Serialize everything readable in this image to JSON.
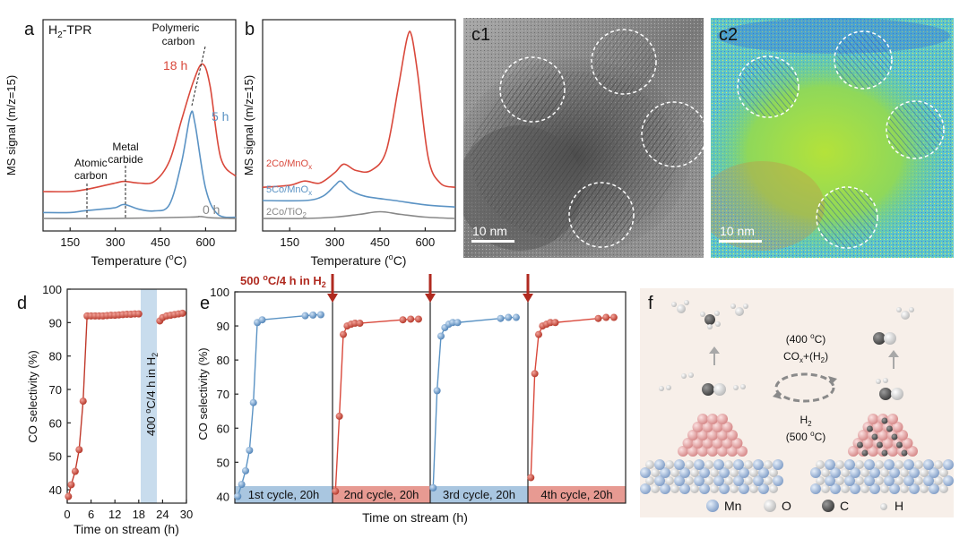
{
  "panels": {
    "a": {
      "letter": "a",
      "title_main": "H",
      "title_sub": "2",
      "title_rest": "-TPR",
      "ylabel": "MS signal (m/z=15)",
      "xlabel_pre": "Temperature (",
      "xlabel_sup": "o",
      "xlabel_post": "C)",
      "xticks": [
        "150",
        "300",
        "450",
        "600"
      ],
      "labels": {
        "polymeric1": "Polymeric",
        "polymeric2": "carbon",
        "metal1": "Metal",
        "metal2": "carbide",
        "atomic1": "Atomic",
        "atomic2": "carbon"
      },
      "series": [
        {
          "name": "18 h",
          "color": "#d9483b"
        },
        {
          "name": "5 h",
          "color": "#5b93c4"
        },
        {
          "name": "0 h",
          "color": "#888888"
        }
      ]
    },
    "b": {
      "letter": "b",
      "ylabel": "MS signal (m/z=15)",
      "xlabel_pre": "Temperature (",
      "xlabel_sup": "o",
      "xlabel_post": "C)",
      "xticks": [
        "150",
        "300",
        "450",
        "600"
      ],
      "series": [
        {
          "name_main": "2Co/MnO",
          "name_sub": "x",
          "color": "#d9483b"
        },
        {
          "name_main": "5Co/MnO",
          "name_sub": "x",
          "color": "#5b93c4"
        },
        {
          "name_main": "2Co/TiO",
          "name_sub": "2",
          "color": "#888888"
        }
      ]
    },
    "c1": {
      "letter": "c1",
      "scale": "10 nm"
    },
    "c2": {
      "letter": "c2",
      "scale": "10 nm"
    },
    "d": {
      "letter": "d",
      "ylabel": "CO selectivity (%)",
      "xlabel": "Time on stream (h)",
      "xticks": [
        "0",
        "6",
        "12",
        "18",
        "24",
        "30"
      ],
      "yticks": [
        "40",
        "50",
        "60",
        "70",
        "80",
        "90",
        "100"
      ],
      "band_pre": "400 ",
      "band_sup": "o",
      "band_mid": "C/4 h in H",
      "band_sub": "2",
      "color": "#c0392b"
    },
    "e": {
      "letter": "e",
      "ylabel": "CO selectivity (%)",
      "xlabel": "Time on stream (h)",
      "yticks": [
        "40",
        "50",
        "60",
        "70",
        "80",
        "90",
        "100"
      ],
      "header_pre": "500 ",
      "header_sup": "o",
      "header_mid": "C/4 h in H",
      "header_sub": "2",
      "cycles": [
        "1st cycle, 20h",
        "2nd cycle, 20h",
        "3rd cycle, 20h",
        "4th cycle, 20h"
      ],
      "colors": {
        "blue": "#5b93c4",
        "red": "#d9483b",
        "blue_bg": "#a9c6e0",
        "red_bg": "#e79a92",
        "arrow": "#b02a20"
      }
    },
    "f": {
      "letter": "f",
      "cond1_pre": "(400 ",
      "cond1_sup": "o",
      "cond1_post": "C)",
      "cond2_pre": "CO",
      "cond2_sub": "x",
      "cond2_mid": "+(H",
      "cond2_sub2": "2",
      "cond2_post": ")",
      "cond3_pre": "H",
      "cond3_sub": "2",
      "cond4_pre": "(500 ",
      "cond4_sup": "o",
      "cond4_post": "C)",
      "legend": [
        "Mn",
        "O",
        "C",
        "H"
      ]
    }
  },
  "chart_data": [
    {
      "type": "line",
      "title": "H2-TPR",
      "xlabel": "Temperature (oC)",
      "ylabel": "MS signal (m/z=15)",
      "xlim": [
        60,
        700
      ],
      "ylim": [
        0,
        1
      ],
      "series": [
        {
          "name": "18 h",
          "x": [
            60,
            150,
            195,
            250,
            300,
            330,
            380,
            430,
            480,
            520,
            560,
            590,
            615,
            650,
            700
          ],
          "y": [
            0.2,
            0.2,
            0.21,
            0.23,
            0.25,
            0.26,
            0.25,
            0.26,
            0.38,
            0.62,
            0.85,
            0.95,
            0.82,
            0.4,
            0.29
          ]
        },
        {
          "name": "5 h",
          "x": [
            60,
            150,
            195,
            250,
            300,
            330,
            380,
            430,
            480,
            520,
            550,
            565,
            600,
            640,
            700
          ],
          "y": [
            0.07,
            0.07,
            0.08,
            0.09,
            0.1,
            0.12,
            0.09,
            0.08,
            0.12,
            0.38,
            0.68,
            0.62,
            0.22,
            0.06,
            0.04
          ]
        },
        {
          "name": "0 h",
          "x": [
            60,
            300,
            550,
            580,
            620,
            700
          ],
          "y": [
            0.0,
            0.0,
            0.01,
            0.015,
            0.005,
            0.0
          ]
        }
      ]
    },
    {
      "type": "line",
      "xlabel": "Temperature (oC)",
      "ylabel": "MS signal (m/z=15)",
      "xlim": [
        60,
        700
      ],
      "ylim": [
        0,
        1
      ],
      "series": [
        {
          "name": "2Co/MnOx",
          "x": [
            60,
            150,
            200,
            250,
            300,
            330,
            370,
            420,
            470,
            510,
            540,
            555,
            575,
            610,
            650,
            700
          ],
          "y": [
            0.28,
            0.29,
            0.31,
            0.3,
            0.35,
            0.39,
            0.36,
            0.36,
            0.45,
            0.75,
            0.99,
            1.0,
            0.82,
            0.42,
            0.3,
            0.28
          ]
        },
        {
          "name": "5Co/MnOx",
          "x": [
            60,
            200,
            260,
            300,
            320,
            350,
            400,
            500,
            600,
            700
          ],
          "y": [
            0.15,
            0.15,
            0.17,
            0.22,
            0.24,
            0.2,
            0.17,
            0.15,
            0.13,
            0.12
          ]
        },
        {
          "name": "2Co/TiO2",
          "x": [
            60,
            200,
            300,
            380,
            450,
            520,
            600,
            700
          ],
          "y": [
            0.02,
            0.02,
            0.03,
            0.05,
            0.07,
            0.05,
            0.03,
            0.02
          ]
        }
      ]
    },
    {
      "type": "scatter",
      "xlabel": "Time on stream (h)",
      "ylabel": "CO selectivity (%)",
      "xlim": [
        0,
        30
      ],
      "ylim": [
        36,
        100
      ],
      "series": [
        {
          "name": "CO selectivity",
          "x": [
            0.3,
            1,
            2,
            3,
            4,
            5,
            6,
            7,
            8,
            9,
            10,
            11,
            12,
            13,
            14,
            15,
            16,
            17,
            18,
            23.3,
            24,
            25,
            26,
            27,
            28,
            29
          ],
          "y": [
            38,
            41.5,
            45.5,
            52,
            66.5,
            92,
            92,
            92,
            92,
            92,
            92.1,
            92.2,
            92.2,
            92.3,
            92.4,
            92.5,
            92.5,
            92.6,
            92.6,
            90.5,
            91.5,
            92,
            92.2,
            92.4,
            92.6,
            92.8
          ]
        }
      ],
      "annotations": [
        "400 oC/4 h in H2"
      ]
    },
    {
      "type": "scatter",
      "xlabel": "Time on stream (h)",
      "ylabel": "CO selectivity (%)",
      "ylim": [
        38,
        100
      ],
      "categories": [
        "1st cycle, 20h",
        "2nd cycle, 20h",
        "3rd cycle, 20h",
        "4th cycle, 20h"
      ],
      "series": [
        {
          "name": "1st cycle",
          "y": [
            40,
            43.5,
            47.5,
            53.5,
            67.5,
            91,
            91.8,
            93,
            93.2,
            93.3
          ]
        },
        {
          "name": "2nd cycle",
          "y": [
            41.5,
            63.5,
            87.5,
            90,
            90.5,
            90.8,
            90.8,
            91.8,
            92,
            92
          ]
        },
        {
          "name": "3rd cycle",
          "y": [
            42.5,
            71,
            87,
            89.5,
            90.5,
            91,
            91,
            92.2,
            92.5,
            92.5
          ]
        },
        {
          "name": "4th cycle",
          "y": [
            45.5,
            76,
            87.5,
            90,
            90.5,
            91,
            91,
            92.2,
            92.5,
            92.5
          ]
        }
      ],
      "annotations": [
        "500 oC/4 h in H2"
      ]
    }
  ]
}
